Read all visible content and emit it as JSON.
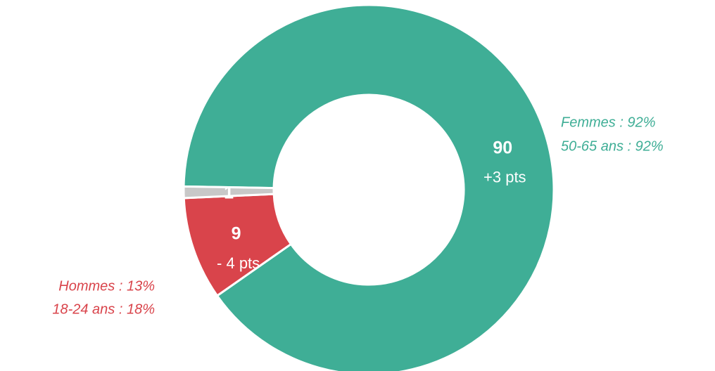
{
  "chart_data": {
    "type": "pie",
    "values": [
      90,
      9,
      1
    ],
    "sub_labels": [
      "+3 pts",
      "- 4 pts",
      null
    ],
    "colors": [
      "#3fae96",
      "#d9444b",
      "#c8c8c8"
    ],
    "donut": true,
    "annotations": [
      {
        "lines": [
          "Femmes : 92%",
          "50-65 ans : 92%"
        ],
        "color": "#3fae96"
      },
      {
        "lines": [
          "Hommes : 13%",
          "18-24 ans : 18%"
        ],
        "color": "#d9444b"
      }
    ]
  }
}
